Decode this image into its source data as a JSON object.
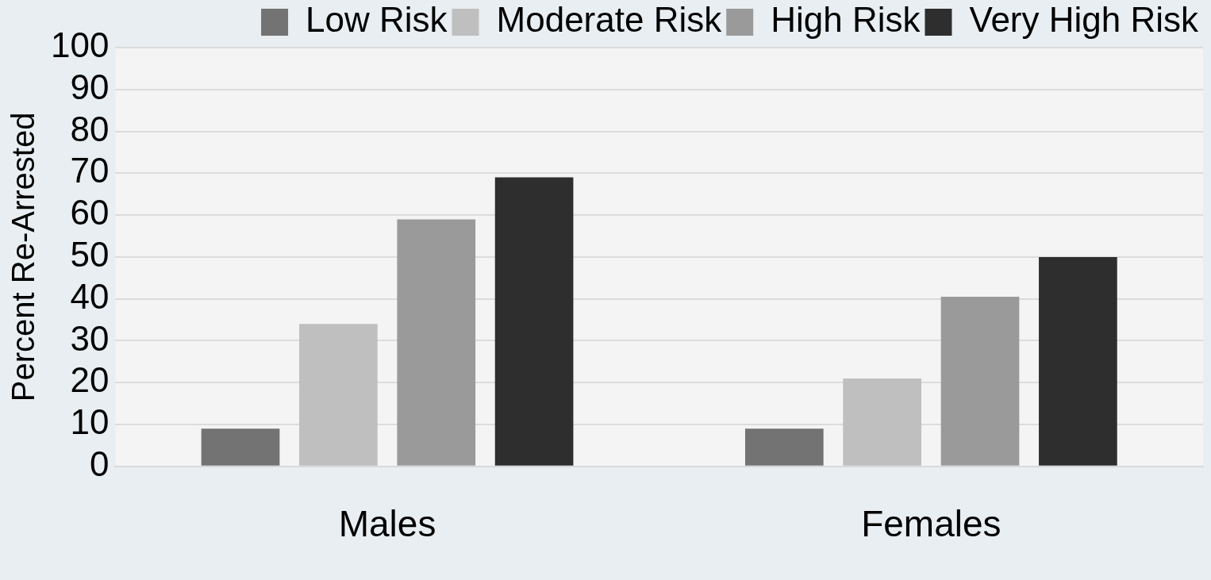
{
  "chart_data": {
    "type": "bar",
    "ylabel": "Percent Re-Arrested",
    "categories": [
      "Males",
      "Females"
    ],
    "series": [
      {
        "name": "Low Risk",
        "color": "#737373",
        "values": [
          9,
          9
        ]
      },
      {
        "name": "Moderate Risk",
        "color": "#bfbfbf",
        "values": [
          34,
          21
        ]
      },
      {
        "name": "High Risk",
        "color": "#9a9a9a",
        "values": [
          59,
          40.5
        ]
      },
      {
        "name": "Very High Risk",
        "color": "#2e2e2e",
        "values": [
          69,
          50
        ]
      }
    ],
    "ylim": [
      0,
      100
    ],
    "yticks": [
      0,
      10,
      20,
      30,
      40,
      50,
      60,
      70,
      80,
      90,
      100
    ],
    "grid": "y",
    "legend": "top"
  }
}
